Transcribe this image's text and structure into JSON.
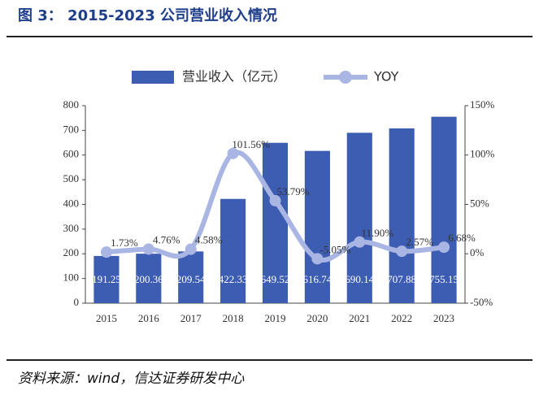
{
  "chart_data": {
    "type": "bar_line",
    "title": "图 3：  2015-2023 公司营业收入情况",
    "source": "资料来源：wind，信达证券研发中心",
    "categories": [
      "2015",
      "2016",
      "2017",
      "2018",
      "2019",
      "2020",
      "2021",
      "2022",
      "2023"
    ],
    "series": [
      {
        "name": "营业收入（亿元）",
        "color": "#3d5db3",
        "type": "bar",
        "values": [
          191.25,
          200.36,
          209.54,
          422.33,
          649.52,
          616.74,
          690.14,
          707.88,
          755.15
        ]
      },
      {
        "name": "YOY",
        "color": "#a9b5e2",
        "type": "line",
        "axis": "y2",
        "values": [
          1.73,
          4.76,
          4.58,
          101.56,
          53.79,
          -5.05,
          11.9,
          2.57,
          6.68
        ],
        "value_labels": [
          "1.73%",
          "4.76%",
          "4.58%",
          "101.56%",
          "53.79%",
          "-5.05%",
          "11.90%",
          "2.57%",
          "6.68%"
        ]
      }
    ],
    "ylim": [
      0,
      800
    ],
    "yticks": [
      0,
      100,
      200,
      300,
      400,
      500,
      600,
      700,
      800
    ],
    "y2lim": [
      -50,
      150
    ],
    "y2ticks": [
      {
        "value": -50,
        "label": "-50%"
      },
      {
        "value": 0,
        "label": "0%"
      },
      {
        "value": 50,
        "label": "50%"
      },
      {
        "value": 100,
        "label": "100%"
      },
      {
        "value": 150,
        "label": "150%"
      }
    ]
  }
}
